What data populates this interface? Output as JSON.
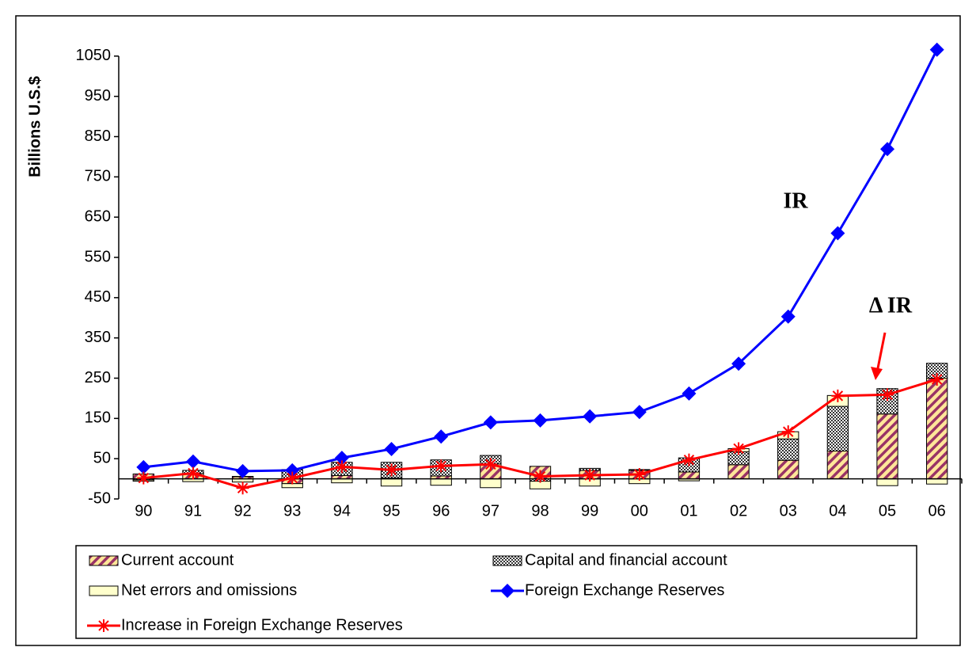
{
  "chart_data": {
    "type": "stacked-bar-line",
    "y_label": "Billions U.S.$",
    "categories": [
      "90",
      "91",
      "92",
      "93",
      "94",
      "95",
      "96",
      "97",
      "98",
      "99",
      "00",
      "01",
      "02",
      "03",
      "04",
      "05",
      "06"
    ],
    "ylim": [
      -50,
      1150
    ],
    "yticks": [
      -50,
      50,
      150,
      250,
      350,
      450,
      550,
      650,
      750,
      850,
      950,
      1050
    ],
    "series": [
      {
        "name": "Current account",
        "type": "bar",
        "color": "#993366",
        "values": [
          12,
          13,
          6,
          -12,
          8,
          2,
          7,
          37,
          31,
          21,
          21,
          17,
          35,
          46,
          69,
          161,
          250
        ]
      },
      {
        "name": "Capital and financial account",
        "type": "bar",
        "color": "#333333",
        "values": [
          -3,
          8,
          0,
          23,
          33,
          39,
          40,
          21,
          -6,
          5,
          2,
          35,
          32,
          53,
          111,
          63,
          37
        ]
      },
      {
        "name": "Net errors and omissions",
        "type": "bar",
        "color": "#ffffcc",
        "values": [
          -3,
          -7,
          -8,
          -10,
          -10,
          -18,
          -16,
          -22,
          -19,
          -18,
          -12,
          -5,
          8,
          18,
          27,
          -17,
          -13
        ]
      },
      {
        "name": "Foreign Exchange Reserves",
        "type": "line",
        "marker": "diamond",
        "color": "#0000ff",
        "values": [
          29,
          43,
          19,
          21,
          52,
          74,
          105,
          140,
          145,
          155,
          166,
          212,
          286,
          403,
          610,
          819,
          1066
        ]
      },
      {
        "name": "Increase in Foreign Exchange Reserves",
        "type": "line",
        "marker": "star",
        "color": "#ff0000",
        "values": [
          2,
          14,
          -23,
          2,
          30,
          22,
          32,
          36,
          6,
          9,
          11,
          47,
          75,
          117,
          206,
          209,
          247
        ]
      }
    ],
    "annotations": [
      {
        "text": "IR",
        "color": "#0000ff"
      },
      {
        "text": "Δ IR",
        "color": "#ff0000"
      }
    ]
  }
}
